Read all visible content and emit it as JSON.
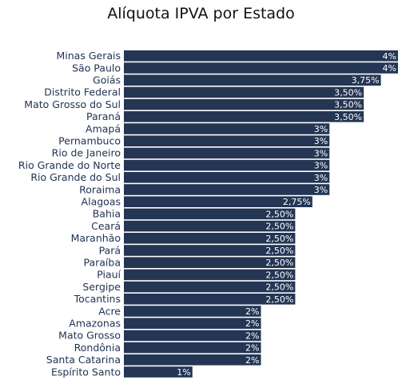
{
  "chart_data": {
    "type": "bar",
    "orientation": "horizontal",
    "title": "Alíquota IPVA por Estado",
    "xlabel": "",
    "ylabel": "",
    "xlim": [
      0,
      4
    ],
    "grid": false,
    "bar_color": "#243654",
    "categories": [
      "Minas Gerais",
      "São Paulo",
      "Goiás",
      "Distrito Federal",
      "Mato Grosso do Sul",
      "Paraná",
      "Amapá",
      "Pernambuco",
      "Rio de Janeiro",
      "Rio Grande do Norte",
      "Rio Grande do Sul",
      "Roraima",
      "Alagoas",
      "Bahia",
      "Ceará",
      "Maranhão",
      "Pará",
      "Paraíba",
      "Piauí",
      "Sergipe",
      "Tocantins",
      "Acre",
      "Amazonas",
      "Mato Grosso",
      "Rondônia",
      "Santa Catarina",
      "Espírito Santo"
    ],
    "values": [
      4,
      4,
      3.75,
      3.5,
      3.5,
      3.5,
      3,
      3,
      3,
      3,
      3,
      3,
      2.75,
      2.5,
      2.5,
      2.5,
      2.5,
      2.5,
      2.5,
      2.5,
      2.5,
      2,
      2,
      2,
      2,
      2,
      1
    ],
    "value_labels": [
      "4%",
      "4%",
      "3,75%",
      "3,50%",
      "3,50%",
      "3,50%",
      "3%",
      "3%",
      "3%",
      "3%",
      "3%",
      "3%",
      "2,75%",
      "2,50%",
      "2,50%",
      "2,50%",
      "2,50%",
      "2,50%",
      "2,50%",
      "2,50%",
      "2,50%",
      "2%",
      "2%",
      "2%",
      "2%",
      "2%",
      "1%"
    ]
  }
}
